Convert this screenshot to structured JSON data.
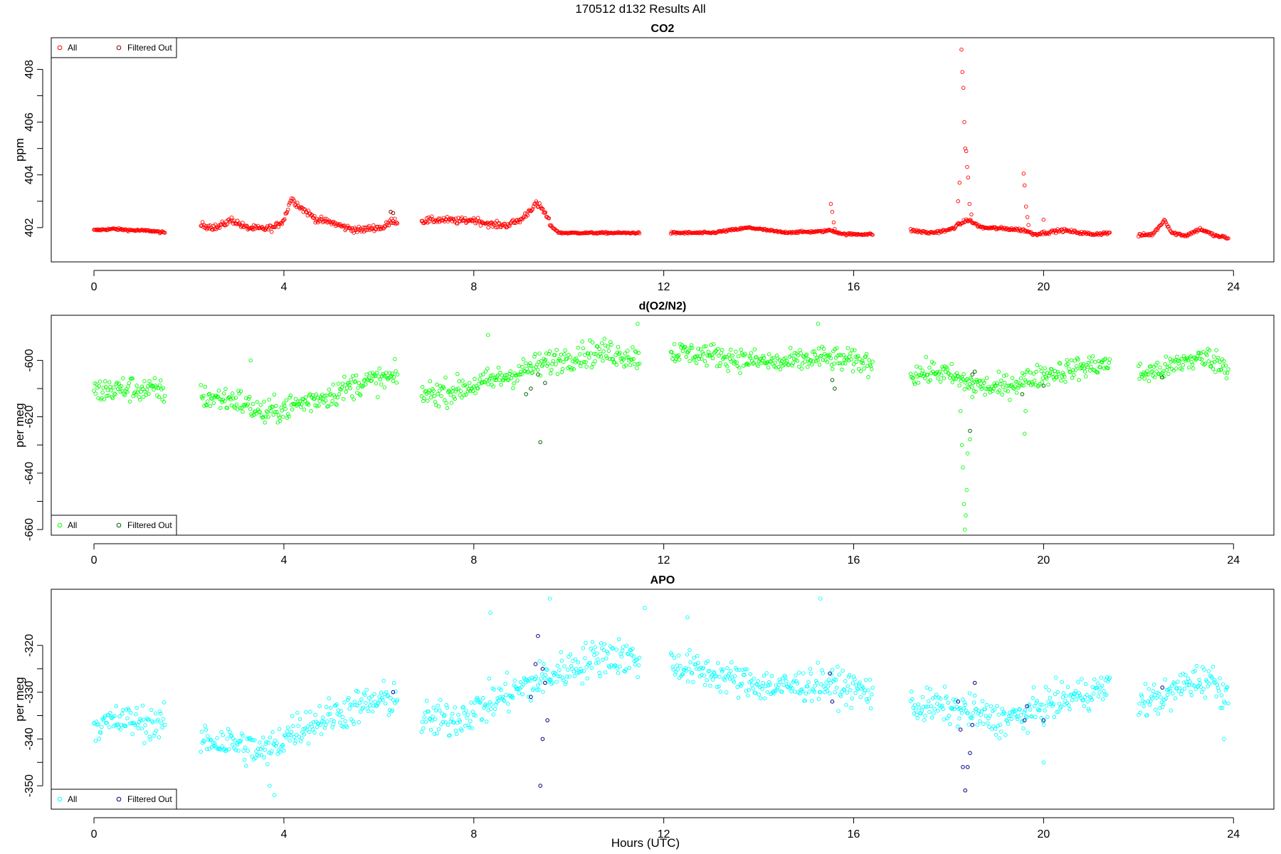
{
  "figure": {
    "title": "170512   d132   Results All",
    "xlabel": "Hours (UTC)"
  },
  "chart_data": [
    {
      "type": "scatter",
      "title": "CO2",
      "xlabel": "",
      "ylabel": "ppm",
      "xlim": [
        -0.9,
        24.85
      ],
      "ylim": [
        400.7,
        409.2
      ],
      "xticks": [
        0,
        4,
        8,
        12,
        16,
        20,
        24
      ],
      "yticks": [
        402,
        404,
        406,
        408
      ],
      "grid": false,
      "legend": {
        "position": "top-left",
        "entries": [
          "All",
          "Filtered Out"
        ]
      },
      "colors": {
        "all": "#ff0000",
        "filtered": "#8b0000"
      },
      "segments": [
        {
          "range": [
            0.0,
            1.5
          ],
          "knots": [
            [
              0.0,
              401.9
            ],
            [
              0.4,
              401.95
            ],
            [
              0.8,
              401.9
            ],
            [
              1.2,
              401.88
            ],
            [
              1.5,
              401.8
            ]
          ],
          "noise": 0.04
        },
        {
          "range": [
            2.25,
            6.4
          ],
          "knots": [
            [
              2.25,
              402.1
            ],
            [
              2.6,
              402.0
            ],
            [
              2.9,
              402.3
            ],
            [
              3.2,
              402.0
            ],
            [
              3.5,
              401.95
            ],
            [
              3.8,
              402.0
            ],
            [
              4.0,
              402.3
            ],
            [
              4.15,
              403.1
            ],
            [
              4.4,
              402.7
            ],
            [
              4.7,
              402.3
            ],
            [
              5.0,
              402.2
            ],
            [
              5.3,
              402.0
            ],
            [
              5.6,
              401.9
            ],
            [
              5.9,
              402.0
            ],
            [
              6.1,
              402.0
            ],
            [
              6.3,
              402.3
            ],
            [
              6.4,
              402.2
            ]
          ],
          "noise": 0.12
        },
        {
          "range": [
            6.9,
            9.6
          ],
          "knots": [
            [
              6.9,
              402.25
            ],
            [
              7.3,
              402.3
            ],
            [
              7.7,
              402.25
            ],
            [
              8.0,
              402.3
            ],
            [
              8.4,
              402.1
            ],
            [
              8.7,
              402.1
            ],
            [
              9.0,
              402.3
            ],
            [
              9.3,
              402.9
            ],
            [
              9.45,
              402.7
            ],
            [
              9.6,
              402.2
            ]
          ],
          "noise": 0.12
        },
        {
          "range": [
            9.6,
            11.5
          ],
          "knots": [
            [
              9.6,
              402.1
            ],
            [
              9.8,
              401.8
            ],
            [
              10.5,
              401.8
            ],
            [
              11.5,
              401.8
            ]
          ],
          "noise": 0.03
        },
        {
          "range": [
            12.15,
            16.4
          ],
          "knots": [
            [
              12.15,
              401.8
            ],
            [
              13.0,
              401.8
            ],
            [
              13.8,
              402.0
            ],
            [
              14.5,
              401.82
            ],
            [
              15.3,
              401.85
            ],
            [
              15.5,
              401.9
            ],
            [
              15.8,
              401.75
            ],
            [
              16.4,
              401.75
            ]
          ],
          "noise": 0.04
        },
        {
          "range": [
            17.2,
            21.4
          ],
          "knots": [
            [
              17.2,
              401.9
            ],
            [
              17.6,
              401.8
            ],
            [
              18.0,
              401.9
            ],
            [
              18.4,
              402.3
            ],
            [
              18.7,
              402.0
            ],
            [
              19.3,
              401.95
            ],
            [
              19.6,
              401.9
            ],
            [
              19.8,
              401.75
            ],
            [
              20.4,
              401.9
            ],
            [
              21.0,
              401.75
            ],
            [
              21.4,
              401.8
            ]
          ],
          "noise": 0.06
        },
        {
          "range": [
            22.0,
            23.9
          ],
          "knots": [
            [
              22.0,
              401.7
            ],
            [
              22.3,
              401.75
            ],
            [
              22.55,
              402.3
            ],
            [
              22.7,
              401.8
            ],
            [
              23.0,
              401.7
            ],
            [
              23.3,
              401.95
            ],
            [
              23.6,
              401.7
            ],
            [
              23.9,
              401.6
            ]
          ],
          "noise": 0.06
        }
      ],
      "spikes": [
        [
          15.52,
          402.9
        ],
        [
          15.55,
          402.6
        ],
        [
          15.58,
          402.2
        ],
        [
          15.6,
          401.95
        ],
        [
          18.2,
          403.0
        ],
        [
          18.23,
          403.7
        ],
        [
          18.27,
          408.75
        ],
        [
          18.29,
          407.9
        ],
        [
          18.31,
          407.3
        ],
        [
          18.33,
          406.0
        ],
        [
          18.35,
          405.0
        ],
        [
          18.37,
          404.9
        ],
        [
          18.39,
          404.3
        ],
        [
          18.41,
          403.9
        ],
        [
          18.44,
          402.9
        ],
        [
          18.48,
          402.5
        ],
        [
          19.58,
          404.05
        ],
        [
          19.6,
          403.6
        ],
        [
          19.63,
          402.8
        ],
        [
          19.66,
          402.4
        ],
        [
          19.68,
          402.1
        ],
        [
          20.0,
          402.3
        ]
      ],
      "filtered": [
        [
          6.25,
          402.6
        ],
        [
          6.3,
          402.55
        ]
      ]
    },
    {
      "type": "scatter",
      "title": "d(O2/N2)",
      "xlabel": "",
      "ylabel": "per meg",
      "xlim": [
        -0.9,
        24.85
      ],
      "ylim": [
        -662,
        -584
      ],
      "xticks": [
        0,
        4,
        8,
        12,
        16,
        20,
        24
      ],
      "yticks": [
        -660,
        -640,
        -620,
        -600
      ],
      "grid": false,
      "legend": {
        "position": "bottom-left",
        "entries": [
          "All",
          "Filtered Out"
        ]
      },
      "colors": {
        "all": "#00ff00",
        "filtered": "#006400"
      },
      "segments": [
        {
          "range": [
            0.0,
            1.5
          ],
          "knots": [
            [
              0.0,
              -611
            ],
            [
              0.7,
              -610
            ],
            [
              1.5,
              -611
            ]
          ],
          "noise": 4.5
        },
        {
          "range": [
            2.25,
            6.4
          ],
          "knots": [
            [
              2.25,
              -613
            ],
            [
              3.0,
              -614
            ],
            [
              3.6,
              -619
            ],
            [
              4.2,
              -616
            ],
            [
              5.0,
              -612
            ],
            [
              5.6,
              -608
            ],
            [
              6.4,
              -606
            ]
          ],
          "noise": 4.5
        },
        {
          "range": [
            6.9,
            11.5
          ],
          "knots": [
            [
              6.9,
              -612
            ],
            [
              7.5,
              -611
            ],
            [
              8.2,
              -608
            ],
            [
              8.8,
              -605
            ],
            [
              9.5,
              -601
            ],
            [
              10.2,
              -598
            ],
            [
              10.8,
              -597
            ],
            [
              11.5,
              -599
            ]
          ],
          "noise": 4.5
        },
        {
          "range": [
            12.15,
            16.4
          ],
          "knots": [
            [
              12.15,
              -597
            ],
            [
              13.0,
              -598
            ],
            [
              13.8,
              -600
            ],
            [
              14.5,
              -601
            ],
            [
              15.3,
              -599
            ],
            [
              16.4,
              -601
            ]
          ],
          "noise": 4
        },
        {
          "range": [
            17.2,
            21.4
          ],
          "knots": [
            [
              17.2,
              -605
            ],
            [
              17.8,
              -604
            ],
            [
              18.4,
              -608
            ],
            [
              19.0,
              -610
            ],
            [
              19.6,
              -607
            ],
            [
              20.0,
              -605
            ],
            [
              20.6,
              -603
            ],
            [
              21.4,
              -601
            ]
          ],
          "noise": 4
        },
        {
          "range": [
            22.0,
            23.9
          ],
          "knots": [
            [
              22.0,
              -605
            ],
            [
              22.6,
              -603
            ],
            [
              23.0,
              -600
            ],
            [
              23.5,
              -599
            ],
            [
              23.9,
              -603
            ]
          ],
          "noise": 4
        }
      ],
      "spikes": [
        [
          18.25,
          -618
        ],
        [
          18.28,
          -630
        ],
        [
          18.3,
          -638
        ],
        [
          18.32,
          -651
        ],
        [
          18.34,
          -660
        ],
        [
          18.36,
          -655
        ],
        [
          18.38,
          -646
        ],
        [
          18.4,
          -633
        ],
        [
          18.45,
          -628
        ],
        [
          18.5,
          -613
        ],
        [
          19.6,
          -626
        ],
        [
          19.62,
          -618
        ],
        [
          8.3,
          -591
        ],
        [
          11.45,
          -587
        ],
        [
          15.25,
          -587
        ],
        [
          3.3,
          -600
        ]
      ],
      "filtered": [
        [
          9.4,
          -629
        ],
        [
          9.1,
          -612
        ],
        [
          9.2,
          -610
        ],
        [
          9.35,
          -605
        ],
        [
          9.5,
          -608
        ],
        [
          18.5,
          -605
        ],
        [
          18.55,
          -604
        ],
        [
          18.45,
          -625
        ],
        [
          15.55,
          -607
        ],
        [
          15.6,
          -610
        ],
        [
          19.55,
          -612
        ],
        [
          20.0,
          -609
        ],
        [
          22.5,
          -606
        ]
      ]
    },
    {
      "type": "scatter",
      "title": "APO",
      "xlabel": "Hours (UTC)",
      "ylabel": "per meg",
      "xlim": [
        -0.9,
        24.85
      ],
      "ylim": [
        -355,
        -308
      ],
      "xticks": [
        0,
        4,
        8,
        12,
        16,
        20,
        24
      ],
      "yticks": [
        -350,
        -340,
        -330,
        -320
      ],
      "grid": false,
      "legend": {
        "position": "bottom-left",
        "entries": [
          "All",
          "Filtered Out"
        ]
      },
      "colors": {
        "all": "#00ffff",
        "filtered": "#00008b"
      },
      "segments": [
        {
          "range": [
            0.0,
            1.5
          ],
          "knots": [
            [
              0.0,
              -337
            ],
            [
              0.7,
              -336
            ],
            [
              1.5,
              -337
            ]
          ],
          "noise": 3.5
        },
        {
          "range": [
            2.25,
            6.4
          ],
          "knots": [
            [
              2.25,
              -340
            ],
            [
              3.0,
              -341
            ],
            [
              3.6,
              -343
            ],
            [
              4.2,
              -338
            ],
            [
              5.0,
              -335
            ],
            [
              5.6,
              -333
            ],
            [
              6.4,
              -331
            ]
          ],
          "noise": 3.8
        },
        {
          "range": [
            6.9,
            11.5
          ],
          "knots": [
            [
              6.9,
              -336
            ],
            [
              7.5,
              -336
            ],
            [
              8.2,
              -333
            ],
            [
              8.8,
              -330
            ],
            [
              9.5,
              -327
            ],
            [
              10.2,
              -324
            ],
            [
              10.8,
              -322
            ],
            [
              11.5,
              -323
            ]
          ],
          "noise": 4
        },
        {
          "range": [
            12.15,
            16.4
          ],
          "knots": [
            [
              12.15,
              -324
            ],
            [
              13.0,
              -326
            ],
            [
              13.8,
              -328
            ],
            [
              14.5,
              -329
            ],
            [
              15.3,
              -328
            ],
            [
              16.4,
              -330
            ]
          ],
          "noise": 3.5
        },
        {
          "range": [
            17.2,
            21.4
          ],
          "knots": [
            [
              17.2,
              -333
            ],
            [
              17.8,
              -333
            ],
            [
              18.4,
              -334
            ],
            [
              19.0,
              -336
            ],
            [
              19.6,
              -335
            ],
            [
              20.0,
              -333
            ],
            [
              20.6,
              -331
            ],
            [
              21.4,
              -329
            ]
          ],
          "noise": 3.5
        },
        {
          "range": [
            22.0,
            23.9
          ],
          "knots": [
            [
              22.0,
              -332
            ],
            [
              22.6,
              -331
            ],
            [
              23.0,
              -328
            ],
            [
              23.5,
              -327
            ],
            [
              23.9,
              -331
            ]
          ],
          "noise": 3.5
        }
      ],
      "spikes": [
        [
          9.6,
          -310
        ],
        [
          8.35,
          -313
        ],
        [
          11.6,
          -312
        ],
        [
          15.3,
          -310
        ],
        [
          12.5,
          -314
        ],
        [
          3.8,
          -352
        ],
        [
          3.7,
          -350
        ],
        [
          20.0,
          -345
        ],
        [
          23.8,
          -340
        ]
      ],
      "filtered": [
        [
          9.4,
          -350
        ],
        [
          9.35,
          -318
        ],
        [
          9.45,
          -325
        ],
        [
          9.5,
          -328
        ],
        [
          9.2,
          -331
        ],
        [
          9.3,
          -324
        ],
        [
          9.55,
          -336
        ],
        [
          9.45,
          -340
        ],
        [
          18.25,
          -338
        ],
        [
          18.3,
          -346
        ],
        [
          18.35,
          -351
        ],
        [
          18.4,
          -346
        ],
        [
          18.45,
          -343
        ],
        [
          18.5,
          -337
        ],
        [
          18.2,
          -332
        ],
        [
          18.55,
          -328
        ],
        [
          19.6,
          -336
        ],
        [
          19.65,
          -333
        ],
        [
          20.0,
          -336
        ],
        [
          15.5,
          -326
        ],
        [
          15.55,
          -332
        ],
        [
          22.5,
          -329
        ],
        [
          6.3,
          -330
        ]
      ]
    }
  ]
}
